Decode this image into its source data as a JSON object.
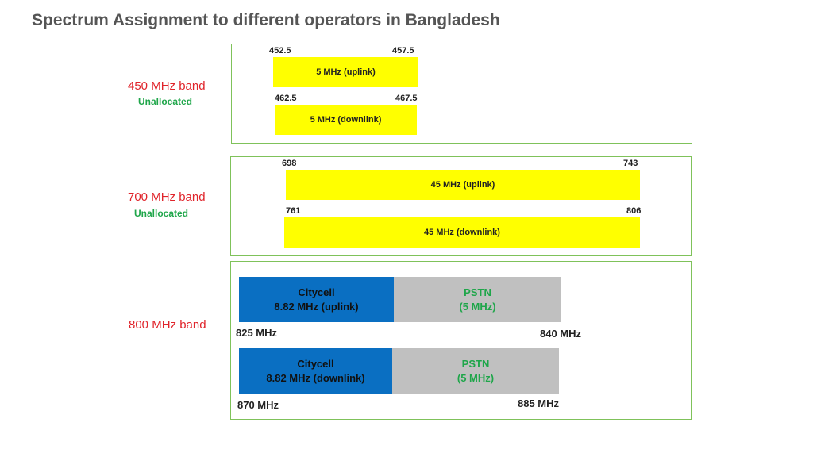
{
  "title": "Spectrum Assignment to different operators in Bangladesh",
  "band450": {
    "name": "450 MHz band",
    "status": "Unallocated",
    "uplink": {
      "start": "452.5",
      "end": "457.5",
      "label": "5 MHz (uplink)"
    },
    "downlink": {
      "start": "462.5",
      "end": "467.5",
      "label": "5 MHz (downlink)"
    }
  },
  "band700": {
    "name": "700 MHz band",
    "status": "Unallocated",
    "uplink": {
      "start": "698",
      "end": "743",
      "label": "45 MHz (uplink)"
    },
    "downlink": {
      "start": "761",
      "end": "806",
      "label": "45 MHz (downlink)"
    }
  },
  "band800": {
    "name": "800 MHz band",
    "uplink": {
      "operator": "Citycell",
      "operator_detail": "8.82 MHz (uplink)",
      "other": "PSTN",
      "other_detail": "(5 MHz)",
      "start": "825 MHz",
      "end": "840 MHz"
    },
    "downlink": {
      "operator": "Citycell",
      "operator_detail": "8.82 MHz (downlink)",
      "other": "PSTN",
      "other_detail": "(5 MHz)",
      "start": "870 MHz",
      "end": "885 MHz"
    }
  },
  "colors": {
    "panel_border": "#7fc25a",
    "band_name": "#e0242b",
    "unallocated": "#1fa64a",
    "allocation_bar": "#ffff00",
    "citycell": "#0a6fc2",
    "pstn": "#c0c0c0"
  }
}
